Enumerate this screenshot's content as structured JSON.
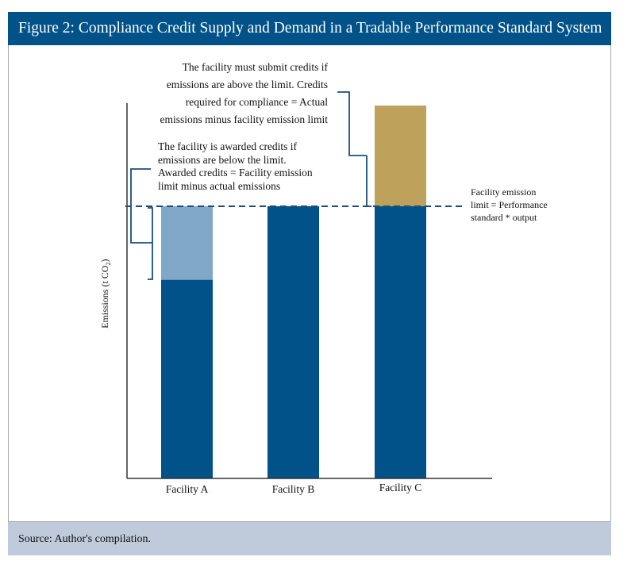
{
  "title": "Figure 2: Compliance Credit Supply and Demand in a Tradable Performance Standard System",
  "source": "Source: Author's compilation.",
  "colors": {
    "header": "#005289",
    "actual": "#005289",
    "awarded": "#80a7c5",
    "required": "#bea15a",
    "footer": "#bfcadb"
  },
  "annotations": {
    "submit": [
      "The facility must submit credits if",
      "emissions are above the limit. Credits",
      "required for compliance = Actual",
      "emissions minus facility emission limit"
    ],
    "awarded": [
      "The facility is awarded credits if",
      "emissions are below the limit.",
      "Awarded credits = Facility emission",
      "limit minus actual emissions"
    ],
    "limit": [
      "Facility emission",
      "limit = Performance",
      "standard * output"
    ]
  },
  "chart_data": {
    "type": "bar",
    "stacked": true,
    "title": "Figure 2: Compliance Credit Supply and Demand in a Tradable Performance Standard System",
    "xlabel": "",
    "ylabel": "Emissions (t CO2)",
    "ylabel_main": "Emissions (t CO",
    "ylabel_sub": "2",
    "ylabel_close": ")",
    "categories": [
      "Facility A",
      "Facility B",
      "Facility C"
    ],
    "limit": 100,
    "actual_emissions": [
      73,
      100,
      137
    ],
    "series": [
      {
        "values": [
          73,
          100,
          100
        ]
      },
      {
        "values": [
          27,
          0,
          0
        ]
      },
      {
        "values": [
          0,
          0,
          37
        ]
      }
    ],
    "ylim": [
      0,
      140
    ],
    "y_ticks": false,
    "grid": false
  }
}
